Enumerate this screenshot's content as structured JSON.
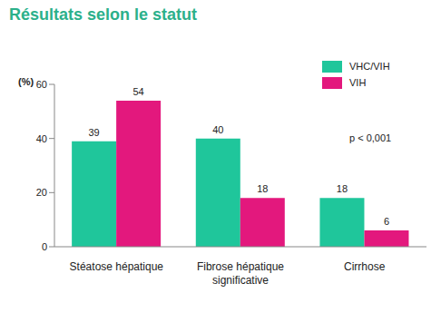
{
  "chart_data": {
    "type": "bar",
    "title": "Résultats selon le statut",
    "y_label": "(%)",
    "categories": [
      "Stéatose hépatique",
      "Fibrose hépatique significative",
      "Cirrhose"
    ],
    "series": [
      {
        "name": "VHC/VIH",
        "color": "#1fc69b",
        "values": [
          39,
          40,
          18
        ]
      },
      {
        "name": "VIH",
        "color": "#e3187d",
        "values": [
          54,
          18,
          6
        ]
      }
    ],
    "ylim": [
      0,
      60
    ],
    "yticks": [
      0,
      20,
      40,
      60
    ],
    "grid": false,
    "legend": "upper right",
    "data_labels": true,
    "annotations": [
      "p < 0,001"
    ]
  }
}
